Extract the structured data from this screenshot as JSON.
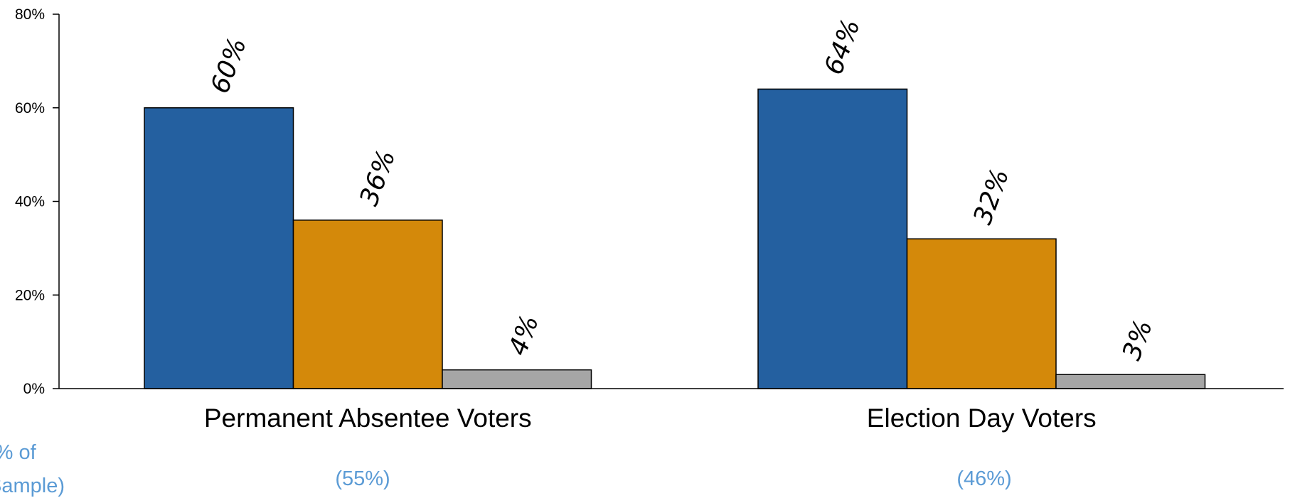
{
  "chart_data": {
    "type": "bar",
    "title": "",
    "xlabel": "",
    "ylabel": "",
    "ylim": [
      0,
      80
    ],
    "y_ticks": [
      0,
      20,
      40,
      60,
      80
    ],
    "y_tick_format": "{v}%",
    "grid": false,
    "legend": "none",
    "categories": [
      "Permanent Absentee Voters",
      "Election Day Voters"
    ],
    "sample_share_label": "(% of Sample)",
    "sample_shares": [
      "(55%)",
      "(46%)"
    ],
    "series": [
      {
        "values": [
          60,
          64
        ],
        "data_labels": [
          "60%",
          "64%"
        ],
        "color": "#2460A0"
      },
      {
        "values": [
          36,
          32
        ],
        "data_labels": [
          "36%",
          "32%"
        ],
        "color": "#D4890A"
      },
      {
        "values": [
          4,
          3
        ],
        "data_labels": [
          "4%",
          "3%"
        ],
        "color": "#A6A6A6"
      }
    ]
  },
  "colors": {
    "share_text": "#5B9BD5",
    "axis": "#000000",
    "bar_outline": "#000000"
  }
}
